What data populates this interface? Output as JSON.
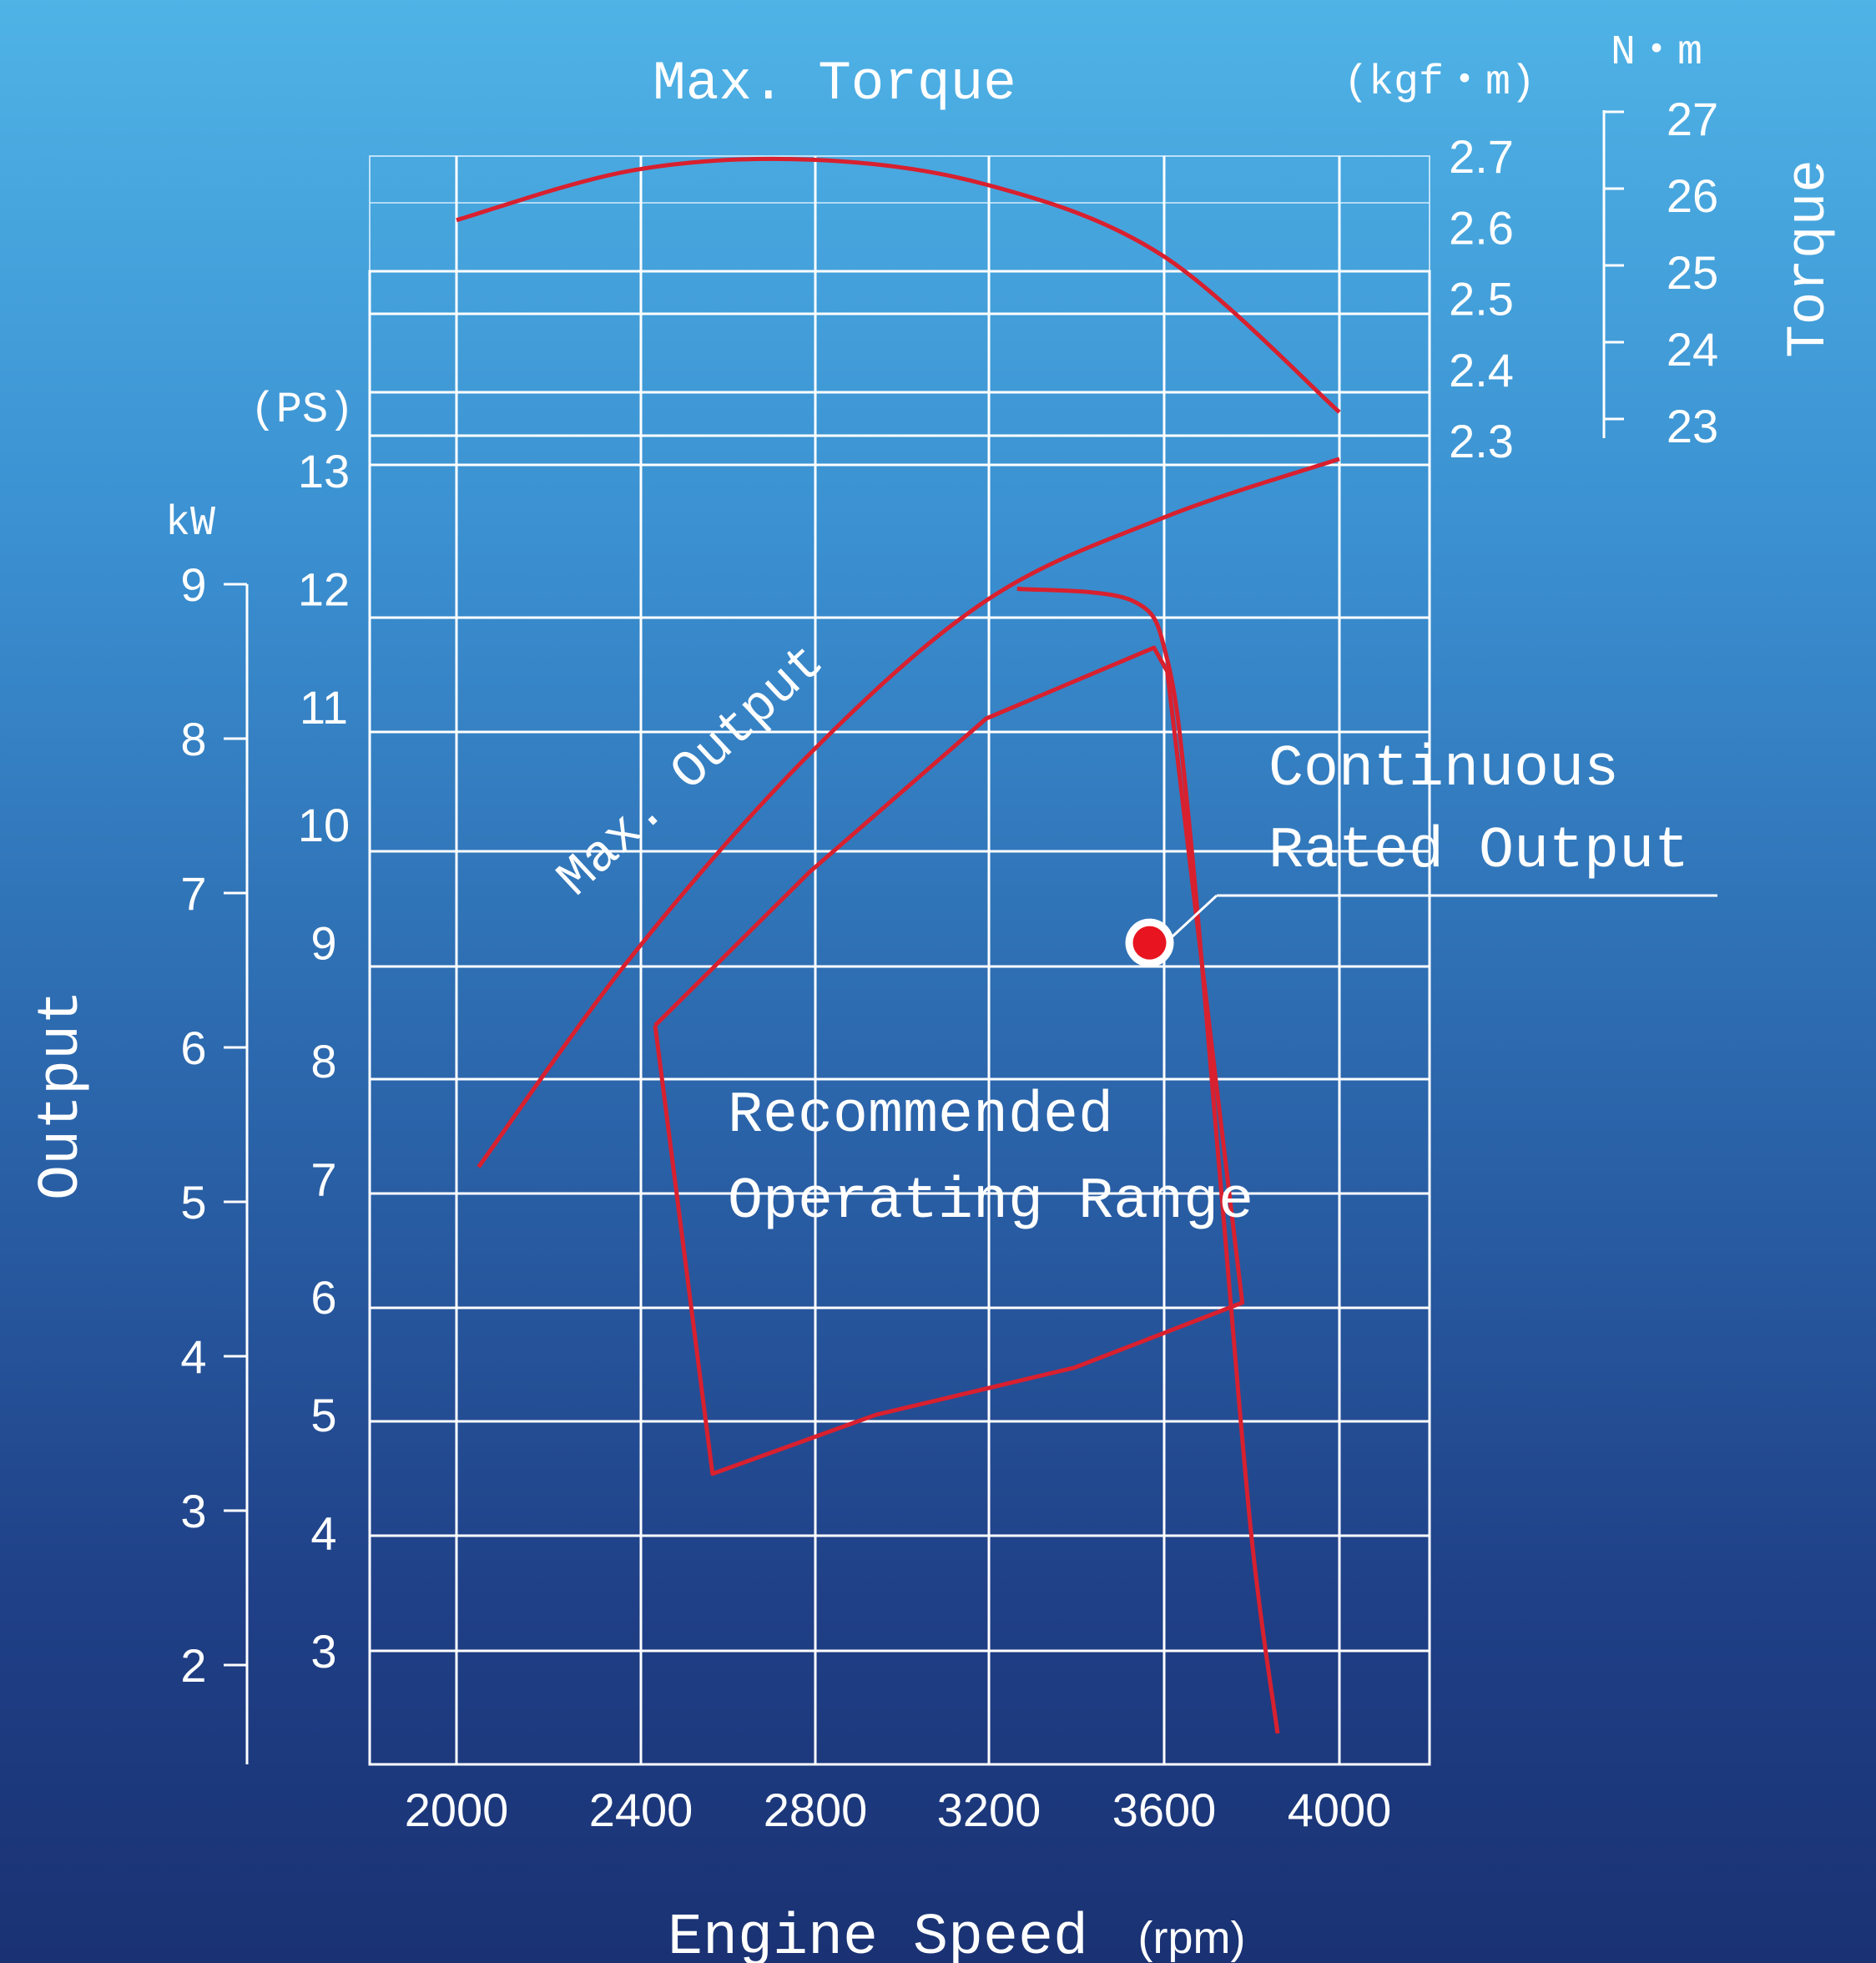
{
  "chart_data": {
    "type": "line",
    "title": "Max. Torque",
    "xlabel": "Engine Speed",
    "xlabel_unit": "(rpm)",
    "x_ticks": [
      "2000",
      "2400",
      "2800",
      "3200",
      "3600",
      "4000"
    ],
    "xlim": [
      1800,
      4200
    ],
    "output_axis": {
      "label": "Output",
      "ps_unit": "(PS)",
      "ps_ticks": [
        "13",
        "12",
        "11",
        "10",
        "9",
        "8",
        "7",
        "6",
        "5",
        "4",
        "3"
      ],
      "ps_range": [
        2.2,
        13.6
      ],
      "kw_unit": "kW",
      "kw_ticks": [
        "9",
        "8",
        "7",
        "6",
        "5",
        "4",
        "3",
        "2"
      ],
      "kw_range": [
        1.6,
        9.0
      ]
    },
    "torque_axis": {
      "label": "Torque",
      "kgfm_unit": "(kgf・m)",
      "kgfm_ticks": [
        "2.7",
        "2.6",
        "2.5",
        "2.4",
        "2.3"
      ],
      "kgfm_range": [
        2.3,
        2.7
      ],
      "nm_unit": "N・m",
      "nm_ticks": [
        "27",
        "26",
        "25",
        "24",
        "23"
      ]
    },
    "series": [
      {
        "name": "Max. Torque",
        "axis": "torque_kgfm",
        "color": "#d8202f",
        "x": [
          2000,
          2400,
          2800,
          3200,
          3600,
          4000
        ],
        "y": [
          2.61,
          2.68,
          2.695,
          2.66,
          2.56,
          2.34
        ]
      },
      {
        "name": "Max. Output",
        "axis": "output_ps",
        "color": "#d8202f",
        "x": [
          2050,
          2400,
          2800,
          3200,
          3600,
          4000
        ],
        "y": [
          7.1,
          8.9,
          10.6,
          11.9,
          12.6,
          13.1
        ]
      },
      {
        "name": "Recommended Operating Range",
        "axis": "output_ps",
        "color": "#d8202f",
        "x": [
          2450,
          2800,
          3200,
          3580,
          3610,
          3780,
          3780,
          3400,
          2950,
          2580,
          2450
        ],
        "y": [
          8.3,
          9.6,
          10.9,
          11.5,
          11.3,
          5.95,
          5.95,
          5.4,
          5.0,
          4.5,
          8.3
        ]
      },
      {
        "name": "Continuous Rated Output",
        "axis": "output_ps",
        "color": "#d8202f",
        "x": [
          3270,
          3530,
          3610,
          3660,
          3730,
          3800,
          3860
        ],
        "y": [
          12.0,
          11.9,
          11.4,
          10.0,
          7.0,
          4.0,
          2.3
        ]
      }
    ],
    "rated_point": {
      "x": 3570,
      "y": 9.0
    },
    "annotations": {
      "max_output": "Max. Output",
      "continuous": [
        "Continuous",
        "Rated Output"
      ],
      "recommended": [
        "Recommended",
        "Operating Range"
      ]
    },
    "grid": true
  }
}
